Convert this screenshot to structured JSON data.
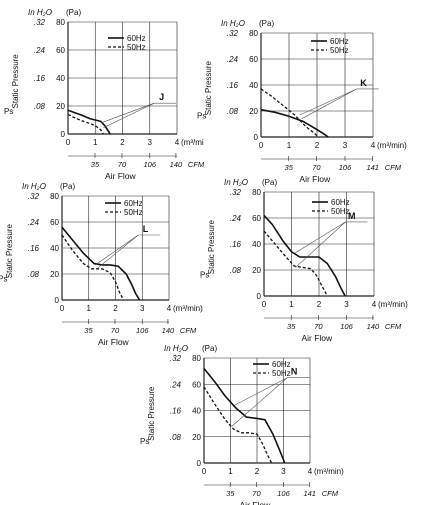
{
  "chart_data": [
    {
      "type": "line",
      "marker": "J",
      "unit_inh2o_label": "In H₂O",
      "unit_pa_label": "(Pa)",
      "y_axis_label": "Static Pressure",
      "ps_label": "Ps",
      "x_axis_label": "Air Flow",
      "x_unit_label": "(m³/mi",
      "cfm_label": "CFM",
      "inh2o_ticks": [
        ".32",
        ".24",
        ".16",
        ".08"
      ],
      "pa_ticks": [
        "80",
        "60",
        "40",
        "20",
        "0"
      ],
      "m3_ticks": [
        "0",
        "1",
        "2",
        "3",
        "4"
      ],
      "cfm_ticks": [
        "35",
        "70",
        "106",
        "140"
      ],
      "xlim": [
        0,
        4
      ],
      "ylim": [
        0,
        80
      ],
      "cfm_positions": [
        0.99,
        1.98,
        3.0,
        3.96
      ],
      "series": [
        {
          "name": "60Hz",
          "dash": false,
          "x": [
            0,
            0.2,
            0.5,
            0.8,
            1.0,
            1.2,
            1.35,
            1.45,
            1.55
          ],
          "y": [
            17,
            15.5,
            13.5,
            11,
            10,
            9,
            6,
            3,
            0
          ]
        },
        {
          "name": "50Hz",
          "dash": true,
          "x": [
            0,
            0.2,
            0.5,
            0.8,
            1.0,
            1.2,
            1.3
          ],
          "y": [
            14,
            12,
            9.5,
            7.5,
            6,
            3,
            0
          ]
        }
      ],
      "legend_line_x": 1.6,
      "label_x": 3.6,
      "label_y": 22,
      "pointer_targets": [
        [
          1.22,
          8
        ],
        [
          1.3,
          4.5
        ]
      ]
    },
    {
      "type": "line",
      "marker": "K",
      "unit_inh2o_label": "In H₂O",
      "unit_pa_label": "(Pa)",
      "y_axis_label": "Static Pressure",
      "ps_label": "Ps",
      "x_axis_label": "Air Flow",
      "x_unit_label": "(m³/min)",
      "cfm_label": "CFM",
      "inh2o_ticks": [
        ".32",
        ".24",
        ".16",
        ".08"
      ],
      "pa_ticks": [
        "80",
        "60",
        "40",
        "20",
        "0"
      ],
      "m3_ticks": [
        "0",
        "1",
        "2",
        "3",
        "4"
      ],
      "cfm_ticks": [
        "35",
        "70",
        "106",
        "141"
      ],
      "xlim": [
        0,
        4
      ],
      "ylim": [
        0,
        80
      ],
      "cfm_positions": [
        0.99,
        1.98,
        3.0,
        3.99
      ],
      "series": [
        {
          "name": "60Hz",
          "dash": false,
          "x": [
            0,
            0.5,
            1.0,
            1.5,
            1.9,
            2.2,
            2.4
          ],
          "y": [
            21,
            19,
            16,
            12,
            7,
            3,
            0
          ]
        },
        {
          "name": "50Hz",
          "dash": true,
          "x": [
            0,
            0.4,
            0.8,
            1.2,
            1.6,
            1.9,
            2.05
          ],
          "y": [
            37,
            31,
            24,
            17,
            8,
            3,
            0
          ]
        }
      ],
      "legend_line_x": 1.85,
      "label_x": 3.85,
      "label_y": 37,
      "pointer_targets": [
        [
          1.45,
          14
        ],
        [
          1.4,
          17
        ]
      ]
    },
    {
      "type": "line",
      "marker": "L",
      "unit_inh2o_label": "In H₂O",
      "unit_pa_label": "(Pa)",
      "y_axis_label": "Static Pressure",
      "ps_label": "Ps",
      "x_axis_label": "Air Flow",
      "x_unit_label": "(m³/min)",
      "cfm_label": "CFM",
      "inh2o_ticks": [
        ".32",
        ".24",
        ".16",
        ".08"
      ],
      "pa_ticks": [
        "80",
        "60",
        "40",
        "20",
        "0"
      ],
      "m3_ticks": [
        "0",
        "1",
        "2",
        "3",
        "4"
      ],
      "cfm_ticks": [
        "35",
        "70",
        "106",
        "140"
      ],
      "xlim": [
        0,
        4
      ],
      "ylim": [
        0,
        80
      ],
      "cfm_positions": [
        0.99,
        1.98,
        3.0,
        3.96
      ],
      "series": [
        {
          "name": "60Hz",
          "dash": false,
          "x": [
            0,
            0.4,
            0.8,
            1.2,
            1.5,
            1.8,
            2.1,
            2.4,
            2.6,
            2.75,
            2.9
          ],
          "y": [
            56,
            46,
            36,
            28,
            27,
            27,
            26,
            20,
            12,
            5,
            0
          ]
        },
        {
          "name": "50Hz",
          "dash": true,
          "x": [
            0,
            0.4,
            0.8,
            1.1,
            1.5,
            1.8,
            2.0,
            2.15,
            2.3
          ],
          "y": [
            50,
            38,
            28,
            24,
            24,
            21,
            14,
            6,
            0
          ]
        }
      ],
      "legend_line_x": 1.45,
      "label_x": 3.3,
      "label_y": 50,
      "pointer_targets": [
        [
          1.25,
          27
        ],
        [
          1.3,
          24
        ]
      ]
    },
    {
      "type": "line",
      "marker": "M",
      "unit_inh2o_label": "In H₂O",
      "unit_pa_label": "(Pa)",
      "y_axis_label": "Static Pressure",
      "ps_label": "Ps",
      "x_axis_label": "Air Flow",
      "x_unit_label": "(m³/min)",
      "cfm_label": "CFM",
      "inh2o_ticks": [
        ".32",
        ".24",
        ".16",
        ".08"
      ],
      "pa_ticks": [
        "80",
        "60",
        "40",
        "20",
        "0"
      ],
      "m3_ticks": [
        "0",
        "1",
        "2",
        "3",
        "4"
      ],
      "cfm_ticks": [
        "35",
        "70",
        "106",
        "140"
      ],
      "xlim": [
        0,
        4
      ],
      "ylim": [
        0,
        80
      ],
      "cfm_positions": [
        0.99,
        1.98,
        3.0,
        3.96
      ],
      "series": [
        {
          "name": "60Hz",
          "dash": false,
          "x": [
            0,
            0.3,
            0.7,
            1.0,
            1.3,
            1.6,
            2.0,
            2.3,
            2.6,
            2.8,
            2.95
          ],
          "y": [
            62,
            55,
            42,
            34,
            30,
            30,
            30,
            25,
            15,
            6,
            0
          ]
        },
        {
          "name": "50Hz",
          "dash": true,
          "x": [
            0,
            0.4,
            0.8,
            1.1,
            1.4,
            1.7,
            1.9,
            2.1,
            2.3
          ],
          "y": [
            50,
            40,
            30,
            23,
            22,
            21,
            16,
            8,
            0
          ]
        }
      ],
      "legend_line_x": 1.7,
      "label_x": 3.4,
      "label_y": 57,
      "pointer_targets": [
        [
          1.12,
          33
        ],
        [
          1.15,
          22
        ]
      ]
    },
    {
      "type": "line",
      "marker": "N",
      "unit_inh2o_label": "In H₂O",
      "unit_pa_label": "(Pa)",
      "y_axis_label": "Static Pressure",
      "ps_label": "Ps",
      "x_axis_label": "Air Flow",
      "x_unit_label": "(m³/min)",
      "cfm_label": "CFM",
      "inh2o_ticks": [
        ".32",
        ".24",
        ".16",
        ".08"
      ],
      "pa_ticks": [
        "80",
        "60",
        "40",
        "20",
        "0"
      ],
      "m3_ticks": [
        "0",
        "1",
        "2",
        "3",
        "4"
      ],
      "cfm_ticks": [
        "35",
        "70",
        "106",
        "141"
      ],
      "xlim": [
        0,
        4
      ],
      "ylim": [
        0,
        80
      ],
      "cfm_positions": [
        0.99,
        1.98,
        3.0,
        3.99
      ],
      "series": [
        {
          "name": "60Hz",
          "dash": false,
          "x": [
            0,
            0.4,
            0.8,
            1.2,
            1.6,
            2.0,
            2.3,
            2.6,
            2.85,
            3.05
          ],
          "y": [
            72,
            62,
            51,
            42,
            35,
            34,
            33,
            22,
            10,
            0
          ]
        },
        {
          "name": "50Hz",
          "dash": true,
          "x": [
            0,
            0.4,
            0.8,
            1.1,
            1.4,
            1.7,
            2.0,
            2.2,
            2.4,
            2.55
          ],
          "y": [
            58,
            45,
            33,
            26,
            23,
            23,
            22,
            15,
            6,
            0
          ]
        }
      ],
      "legend_line_x": 1.9,
      "label_x": 3.6,
      "label_y": 65,
      "pointer_targets": [
        [
          1.15,
          44
        ],
        [
          1.05,
          28
        ]
      ]
    }
  ]
}
